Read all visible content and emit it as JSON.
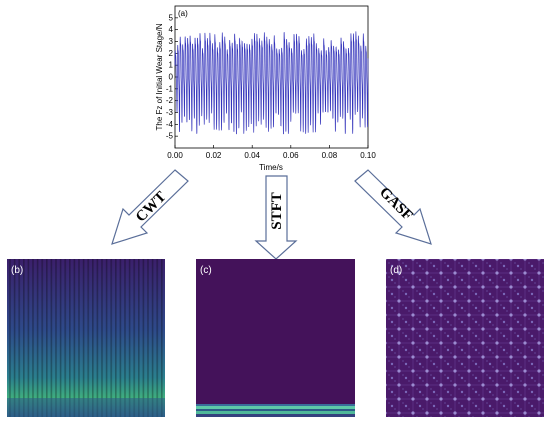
{
  "chart_data": {
    "type": "line",
    "panel_label": "(a)",
    "xlabel": "Time/s",
    "ylabel": "The Fz of Initial Wear Stage/N",
    "xlim": [
      0.0,
      0.1
    ],
    "ylim": [
      -6,
      6
    ],
    "x_ticks": [
      "0.00",
      "0.02",
      "0.04",
      "0.06",
      "0.08",
      "0.10"
    ],
    "y_ticks": [
      "5",
      "4",
      "3",
      "2",
      "1",
      "0",
      "-1",
      "-2",
      "-3",
      "-4",
      "-5"
    ],
    "y_tick_values": [
      5,
      4,
      3,
      2,
      1,
      0,
      -1,
      -2,
      -3,
      -4,
      -5
    ],
    "x_tick_values": [
      0.0,
      0.02,
      0.04,
      0.06,
      0.08,
      0.1
    ],
    "series_color": "#3333bb",
    "signal": {
      "dominant_frequency_hz": 780,
      "amplitude_range": [
        -4.8,
        5.5
      ]
    }
  },
  "transforms": [
    {
      "label": "CWT"
    },
    {
      "label": "STFT"
    },
    {
      "label": "GASF"
    }
  ],
  "panels": {
    "b": {
      "label": "(b)"
    },
    "c": {
      "label": "(c)"
    },
    "d": {
      "label": "(d)"
    }
  },
  "colors": {
    "background_dark": "#44125a",
    "cwt_low": "#3a2c7a",
    "cwt_high": "#33b47c",
    "gasf_bg": "#4a1a6a",
    "gasf_dot": "#8f7fc0",
    "stft_band": "#5ec9a8"
  }
}
